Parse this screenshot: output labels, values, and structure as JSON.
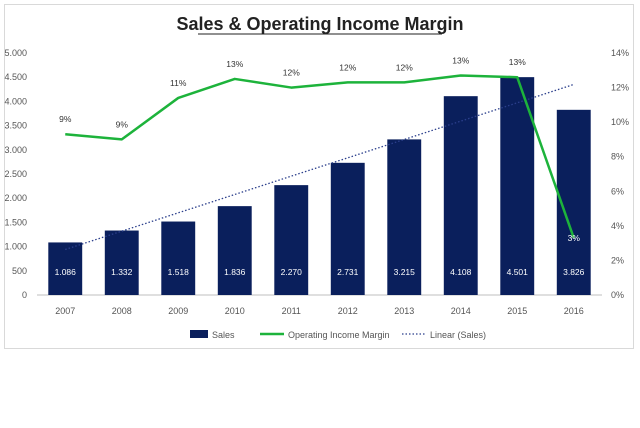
{
  "chart_data": {
    "type": "bar",
    "title": "Sales & Operating Income Margin",
    "categories": [
      "2007",
      "2008",
      "2009",
      "2010",
      "2011",
      "2012",
      "2013",
      "2014",
      "2015",
      "2016"
    ],
    "series": [
      {
        "name": "Sales",
        "type": "bar",
        "axis": "left",
        "color": "#0a1f5c",
        "values": [
          1086,
          1332,
          1518,
          1836,
          2270,
          2731,
          3215,
          4108,
          4501,
          3826
        ],
        "labels": [
          "1.086",
          "1.332",
          "1.518",
          "1.836",
          "2.270",
          "2.731",
          "3.215",
          "4.108",
          "4.501",
          "3.826"
        ]
      },
      {
        "name": "Operating Income Margin",
        "type": "line",
        "axis": "right",
        "color": "#1db33b",
        "values": [
          9.3,
          9.0,
          11.4,
          12.5,
          12.0,
          12.3,
          12.3,
          12.7,
          12.6,
          3.3
        ],
        "labels": [
          "9%",
          "9%",
          "11%",
          "13%",
          "12%",
          "12%",
          "12%",
          "13%",
          "13%",
          "3%"
        ]
      },
      {
        "name": "Linear (Sales)",
        "type": "trendline",
        "axis": "left",
        "color": "#2b3f8c",
        "values": [
          940,
          1320,
          1700,
          2070,
          2450,
          2830,
          3210,
          3590,
          3970,
          4350
        ]
      }
    ],
    "y_left": {
      "ylim": [
        0,
        5000
      ],
      "ticks": [
        0,
        500,
        1000,
        1500,
        2000,
        2500,
        3000,
        3500,
        4000,
        4500,
        5000
      ],
      "tick_labels": [
        "0",
        "500",
        "1.000",
        "1.500",
        "2.000",
        "2.500",
        "3.000",
        "3.500",
        "4.000",
        "4.500",
        "5.000"
      ]
    },
    "y_right": {
      "ylim": [
        0,
        14
      ],
      "ticks": [
        0,
        2,
        4,
        6,
        8,
        10,
        12,
        14
      ],
      "tick_labels": [
        "0%",
        "2%",
        "4%",
        "6%",
        "8%",
        "10%",
        "12%",
        "14%"
      ]
    },
    "legend_position": "bottom",
    "grid": false
  }
}
